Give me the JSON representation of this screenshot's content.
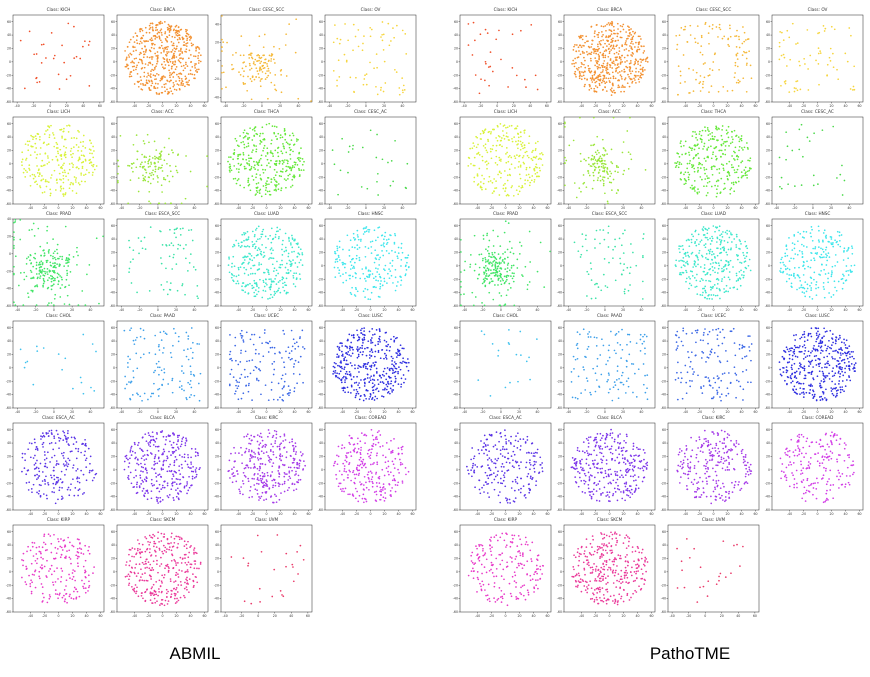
{
  "figure": {
    "captions": [
      "ABMIL",
      "PathoTME"
    ]
  },
  "chart_data": {
    "type": "scatter",
    "title": "",
    "grid": false,
    "colormap_order": [
      "KICH",
      "BRCA",
      "CESC_SCC",
      "OV",
      "LICH",
      "ACC",
      "THCA",
      "CESC_AC",
      "PRAD",
      "ESCA_SCC",
      "LUAD",
      "HNSC",
      "CHOL",
      "PAAD",
      "UCEC",
      "LUSC",
      "ESCA_AC",
      "BLCA",
      "KIRC",
      "COREAD",
      "KIRP",
      "SKCM",
      "UVM"
    ],
    "colors": [
      "#f0502a",
      "#f39233",
      "#f5b93a",
      "#f6d53e",
      "#d9f23a",
      "#9ae63a",
      "#66e83a",
      "#4ad94a",
      "#43e568",
      "#3de3a8",
      "#3ee8cc",
      "#3ee6ec",
      "#3fc2ee",
      "#3ea0ea",
      "#3c68e6",
      "#2e2ee0",
      "#5a34e6",
      "#7c34ea",
      "#a43ae8",
      "#d23ee6",
      "#e83ac8",
      "#ea3a9a",
      "#ea3a6a"
    ],
    "xticks": [
      -40,
      -20,
      0,
      20,
      40,
      60
    ],
    "yticks": [
      60,
      40,
      20,
      0,
      -20,
      -40,
      -60
    ],
    "panels": [
      {
        "model": "ABMIL",
        "subplots": [
          {
            "label": "Class: KICH",
            "n": 32,
            "xlim": [
              -45,
              65
            ],
            "ylim": [
              -60,
              70
            ],
            "shape": "sparse"
          },
          {
            "label": "Class: BRCA",
            "n": 520,
            "xlim": [
              -65,
              65
            ],
            "ylim": [
              -60,
              70
            ],
            "shape": "dense"
          },
          {
            "label": "Class: CESC_SCC",
            "n": 140,
            "xlim": [
              -45,
              55
            ],
            "ylim": [
              -45,
              50
            ],
            "shape": "cluster"
          },
          {
            "label": "Class: OV",
            "n": 70,
            "xlim": [
              -45,
              55
            ],
            "ylim": [
              -60,
              70
            ],
            "shape": "sparse"
          },
          {
            "label": "Class: LICH",
            "n": 260,
            "xlim": [
              -65,
              65
            ],
            "ylim": [
              -60,
              70
            ],
            "shape": "dense"
          },
          {
            "label": "Class: ACC",
            "n": 140,
            "xlim": [
              -45,
              55
            ],
            "ylim": [
              -60,
              70
            ],
            "shape": "cluster"
          },
          {
            "label": "Class: THCA",
            "n": 330,
            "xlim": [
              -65,
              65
            ],
            "ylim": [
              -60,
              70
            ],
            "shape": "dense"
          },
          {
            "label": "Class: CESC_AC",
            "n": 28,
            "xlim": [
              -45,
              55
            ],
            "ylim": [
              -60,
              70
            ],
            "shape": "sparse"
          },
          {
            "label": "Class: PRAD",
            "n": 230,
            "xlim": [
              -45,
              55
            ],
            "ylim": [
              -60,
              40
            ],
            "shape": "cluster"
          },
          {
            "label": "Class: ESCA_SCC",
            "n": 70,
            "xlim": [
              -45,
              55
            ],
            "ylim": [
              -60,
              70
            ],
            "shape": "sparse"
          },
          {
            "label": "Class: LUAD",
            "n": 310,
            "xlim": [
              -65,
              65
            ],
            "ylim": [
              -60,
              70
            ],
            "shape": "dense"
          },
          {
            "label": "Class: HNSC",
            "n": 230,
            "xlim": [
              -65,
              65
            ],
            "ylim": [
              -60,
              70
            ],
            "shape": "dense"
          },
          {
            "label": "Class: CHOL",
            "n": 20,
            "xlim": [
              -45,
              55
            ],
            "ylim": [
              -60,
              70
            ],
            "shape": "sparse"
          },
          {
            "label": "Class: PAAD",
            "n": 120,
            "xlim": [
              -45,
              55
            ],
            "ylim": [
              -60,
              70
            ],
            "shape": "sparse"
          },
          {
            "label": "Class: UCEC",
            "n": 150,
            "xlim": [
              -65,
              65
            ],
            "ylim": [
              -60,
              70
            ],
            "shape": "sparse"
          },
          {
            "label": "Class: LUSC",
            "n": 400,
            "xlim": [
              -65,
              65
            ],
            "ylim": [
              -60,
              70
            ],
            "shape": "dense"
          },
          {
            "label": "Class: ESCA_AC",
            "n": 230,
            "xlim": [
              -65,
              65
            ],
            "ylim": [
              -60,
              70
            ],
            "shape": "dense"
          },
          {
            "label": "Class: BLCA",
            "n": 320,
            "xlim": [
              -65,
              65
            ],
            "ylim": [
              -60,
              70
            ],
            "shape": "dense"
          },
          {
            "label": "Class: KIRC",
            "n": 320,
            "xlim": [
              -65,
              65
            ],
            "ylim": [
              -60,
              70
            ],
            "shape": "dense"
          },
          {
            "label": "Class: COREAD",
            "n": 260,
            "xlim": [
              -65,
              65
            ],
            "ylim": [
              -60,
              70
            ],
            "shape": "dense"
          },
          {
            "label": "Class: KIRP",
            "n": 200,
            "xlim": [
              -65,
              65
            ],
            "ylim": [
              -60,
              70
            ],
            "shape": "dense"
          },
          {
            "label": "Class: SKCM",
            "n": 330,
            "xlim": [
              -65,
              65
            ],
            "ylim": [
              -60,
              70
            ],
            "shape": "dense"
          },
          {
            "label": "Class: UVM",
            "n": 25,
            "xlim": [
              -45,
              65
            ],
            "ylim": [
              -60,
              70
            ],
            "shape": "sparse"
          }
        ]
      },
      {
        "model": "PathoTME",
        "subplots": [
          {
            "label": "Class: KICH",
            "n": 32,
            "xlim": [
              -45,
              65
            ],
            "ylim": [
              -60,
              70
            ],
            "shape": "sparse"
          },
          {
            "label": "Class: BRCA",
            "n": 520,
            "xlim": [
              -65,
              65
            ],
            "ylim": [
              -60,
              70
            ],
            "shape": "dense"
          },
          {
            "label": "Class: CESC_SCC",
            "n": 120,
            "xlim": [
              -65,
              65
            ],
            "ylim": [
              -60,
              70
            ],
            "shape": "sparse"
          },
          {
            "label": "Class: OV",
            "n": 70,
            "xlim": [
              -65,
              65
            ],
            "ylim": [
              -60,
              70
            ],
            "shape": "sparse"
          },
          {
            "label": "Class: LICH",
            "n": 260,
            "xlim": [
              -65,
              65
            ],
            "ylim": [
              -60,
              70
            ],
            "shape": "dense"
          },
          {
            "label": "Class: ACC",
            "n": 150,
            "xlim": [
              -45,
              55
            ],
            "ylim": [
              -60,
              70
            ],
            "shape": "cluster"
          },
          {
            "label": "Class: THCA",
            "n": 300,
            "xlim": [
              -65,
              65
            ],
            "ylim": [
              -60,
              70
            ],
            "shape": "dense"
          },
          {
            "label": "Class: CESC_AC",
            "n": 28,
            "xlim": [
              -45,
              55
            ],
            "ylim": [
              -60,
              70
            ],
            "shape": "sparse"
          },
          {
            "label": "Class: PRAD",
            "n": 230,
            "xlim": [
              -45,
              55
            ],
            "ylim": [
              -60,
              70
            ],
            "shape": "cluster"
          },
          {
            "label": "Class: ESCA_SCC",
            "n": 70,
            "xlim": [
              -45,
              55
            ],
            "ylim": [
              -60,
              70
            ],
            "shape": "sparse"
          },
          {
            "label": "Class: LUAD",
            "n": 320,
            "xlim": [
              -65,
              65
            ],
            "ylim": [
              -60,
              70
            ],
            "shape": "dense"
          },
          {
            "label": "Class: HNSC",
            "n": 230,
            "xlim": [
              -65,
              65
            ],
            "ylim": [
              -60,
              70
            ],
            "shape": "dense"
          },
          {
            "label": "Class: CHOL",
            "n": 20,
            "xlim": [
              -45,
              55
            ],
            "ylim": [
              -60,
              70
            ],
            "shape": "sparse"
          },
          {
            "label": "Class: PAAD",
            "n": 120,
            "xlim": [
              -45,
              55
            ],
            "ylim": [
              -60,
              70
            ],
            "shape": "sparse"
          },
          {
            "label": "Class: UCEC",
            "n": 150,
            "xlim": [
              -65,
              65
            ],
            "ylim": [
              -60,
              70
            ],
            "shape": "sparse"
          },
          {
            "label": "Class: LUSC",
            "n": 400,
            "xlim": [
              -65,
              65
            ],
            "ylim": [
              -60,
              70
            ],
            "shape": "dense"
          },
          {
            "label": "Class: ESCA_AC",
            "n": 230,
            "xlim": [
              -65,
              65
            ],
            "ylim": [
              -60,
              70
            ],
            "shape": "dense"
          },
          {
            "label": "Class: BLCA",
            "n": 320,
            "xlim": [
              -65,
              65
            ],
            "ylim": [
              -60,
              70
            ],
            "shape": "dense"
          },
          {
            "label": "Class: KIRC",
            "n": 260,
            "xlim": [
              -65,
              65
            ],
            "ylim": [
              -60,
              70
            ],
            "shape": "dense"
          },
          {
            "label": "Class: COREAD",
            "n": 200,
            "xlim": [
              -65,
              65
            ],
            "ylim": [
              -60,
              70
            ],
            "shape": "dense"
          },
          {
            "label": "Class: KIRP",
            "n": 200,
            "xlim": [
              -65,
              65
            ],
            "ylim": [
              -60,
              70
            ],
            "shape": "dense"
          },
          {
            "label": "Class: SKCM",
            "n": 330,
            "xlim": [
              -65,
              65
            ],
            "ylim": [
              -60,
              70
            ],
            "shape": "dense"
          },
          {
            "label": "Class: UVM",
            "n": 25,
            "xlim": [
              -45,
              65
            ],
            "ylim": [
              -60,
              70
            ],
            "shape": "sparse"
          }
        ]
      }
    ]
  }
}
